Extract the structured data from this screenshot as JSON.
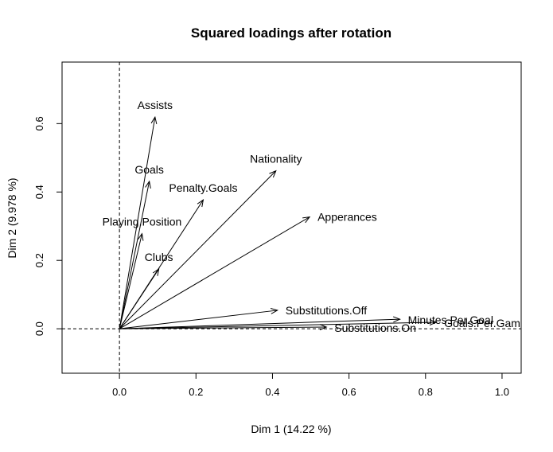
{
  "chart_data": {
    "type": "scatter",
    "title": "Squared loadings after rotation",
    "xlabel": "Dim 1 (14.22 %)",
    "ylabel": "Dim 2 (9.978 %)",
    "xlim": [
      -0.15,
      1.05
    ],
    "ylim": [
      -0.13,
      0.78
    ],
    "xticks": [
      "0.0",
      "0.2",
      "0.4",
      "0.6",
      "0.8",
      "1.0"
    ],
    "xtick_values": [
      0.0,
      0.2,
      0.4,
      0.6,
      0.8,
      1.0
    ],
    "yticks": [
      "0.0",
      "0.2",
      "0.4",
      "0.6"
    ],
    "ytick_values": [
      0.0,
      0.2,
      0.4,
      0.6
    ],
    "reference_lines": "dashed at x=0 and y=0",
    "variables": [
      {
        "name": "Assists",
        "x": 0.093,
        "y": 0.619
      },
      {
        "name": "Goals",
        "x": 0.078,
        "y": 0.431
      },
      {
        "name": "Penalty.Goals",
        "x": 0.219,
        "y": 0.377
      },
      {
        "name": "Nationality",
        "x": 0.409,
        "y": 0.462
      },
      {
        "name": "Playing.Position",
        "x": 0.059,
        "y": 0.278
      },
      {
        "name": "Apperances",
        "x": 0.497,
        "y": 0.327
      },
      {
        "name": "Clubs",
        "x": 0.103,
        "y": 0.175
      },
      {
        "name": "Substitutions.Off",
        "x": 0.413,
        "y": 0.054
      },
      {
        "name": "Minutes.Per.Goal",
        "x": 0.733,
        "y": 0.028
      },
      {
        "name": "Goals.Per.Game",
        "x": 0.828,
        "y": 0.019
      },
      {
        "name": "Substitutions.On",
        "x": 0.541,
        "y": 0.005
      }
    ]
  }
}
